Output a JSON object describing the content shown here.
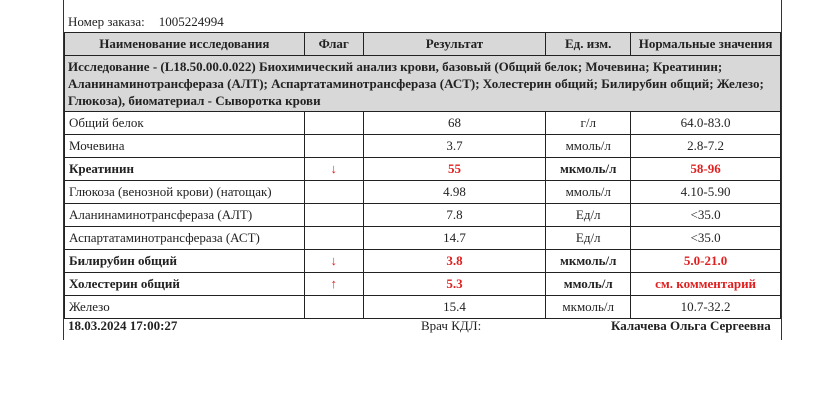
{
  "order": {
    "label": "Номер заказа:",
    "number": "1005224994"
  },
  "headers": [
    "Наименование исследования",
    "Флаг",
    "Результат",
    "Ед. изм.",
    "Нормальные значения"
  ],
  "group": "Исследование - (L18.50.00.0.022) Биохимический анализ крови, базовый (Общий белок; Мочевина; Креатинин; Аланинаминотрансфераза (АЛТ); Аспартатаминотрансфераза (АСТ); Холестерин общий; Билирубин общий; Железо; Глюкоза), биоматериал - Сыворотка крови",
  "rows": [
    {
      "name": "Общий белок",
      "flag": "",
      "result": "68",
      "unit": "г/л",
      "norm": "64.0-83.0",
      "abnormal": false
    },
    {
      "name": "Мочевина",
      "flag": "",
      "result": "3.7",
      "unit": "ммоль/л",
      "norm": "2.8-7.2",
      "abnormal": false
    },
    {
      "name": "Креатинин",
      "flag": "↓",
      "result": "55",
      "unit": "мкмоль/л",
      "norm": "58-96",
      "abnormal": true
    },
    {
      "name": "Глюкоза (венозной крови) (натощак)",
      "flag": "",
      "result": "4.98",
      "unit": "ммоль/л",
      "norm": "4.10-5.90",
      "abnormal": false
    },
    {
      "name": "Аланинаминотрансфераза (АЛТ)",
      "flag": "",
      "result": "7.8",
      "unit": "Ед/л",
      "norm": "<35.0",
      "abnormal": false
    },
    {
      "name": "Аспартатаминотрансфераза (АСТ)",
      "flag": "",
      "result": "14.7",
      "unit": "Ед/л",
      "norm": "<35.0",
      "abnormal": false
    },
    {
      "name": "Билирубин общий",
      "flag": "↓",
      "result": "3.8",
      "unit": "мкмоль/л",
      "norm": "5.0-21.0",
      "abnormal": true
    },
    {
      "name": "Холестерин общий",
      "flag": "↑",
      "result": "5.3",
      "unit": "ммоль/л",
      "norm": "см. комментарий",
      "abnormal": true
    },
    {
      "name": "Железо",
      "flag": "",
      "result": "15.4",
      "unit": "мкмоль/л",
      "norm": "10.7-32.2",
      "abnormal": false
    }
  ],
  "footer": {
    "datetime": "18.03.2024 17:00:27",
    "doctor_label": "Врач КДЛ:",
    "doctor_name": "Калачева Ольга Сергеевна"
  },
  "colors": {
    "abnormal": "#e02020",
    "header_bg": "#d8d8d8"
  }
}
